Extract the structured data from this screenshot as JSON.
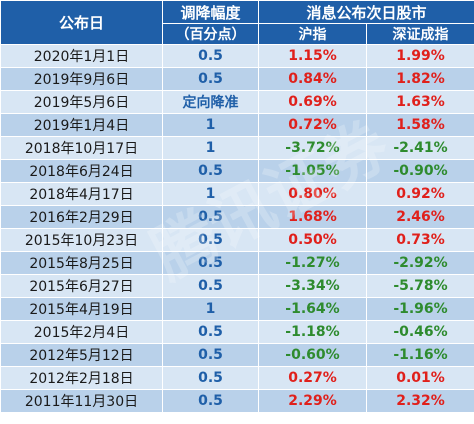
{
  "header": {
    "date_col": "公布日",
    "cut_col": "调降幅度",
    "cut_unit": "（百分点）",
    "market_group": "消息公布次日股市",
    "sh_col": "沪指",
    "sz_col": "深证成指"
  },
  "rows": [
    {
      "date": "2020年1月1日",
      "cut": "0.5",
      "sh": "1.15%",
      "sz": "1.99%"
    },
    {
      "date": "2019年9月6日",
      "cut": "0.5",
      "sh": "0.84%",
      "sz": "1.82%"
    },
    {
      "date": "2019年5月6日",
      "cut": "定向降准",
      "sh": "0.69%",
      "sz": "1.63%"
    },
    {
      "date": "2019年1月4日",
      "cut": "1",
      "sh": "0.72%",
      "sz": "1.58%"
    },
    {
      "date": "2018年10月17日",
      "cut": "1",
      "sh": "-3.72%",
      "sz": "-2.41%"
    },
    {
      "date": "2018年6月24日",
      "cut": "0.5",
      "sh": "-1.05%",
      "sz": "-0.90%"
    },
    {
      "date": "2018年4月17日",
      "cut": "1",
      "sh": "0.80%",
      "sz": "0.92%"
    },
    {
      "date": "2016年2月29日",
      "cut": "0.5",
      "sh": "1.68%",
      "sz": "2.46%"
    },
    {
      "date": "2015年10月23日",
      "cut": "0.5",
      "sh": "0.50%",
      "sz": "0.73%"
    },
    {
      "date": "2015年8月25日",
      "cut": "0.5",
      "sh": "-1.27%",
      "sz": "-2.92%"
    },
    {
      "date": "2015年6月27日",
      "cut": "0.5",
      "sh": "-3.34%",
      "sz": "-5.78%"
    },
    {
      "date": "2015年4月19日",
      "cut": "1",
      "sh": "-1.64%",
      "sz": "-1.96%"
    },
    {
      "date": "2015年2月4日",
      "cut": "0.5",
      "sh": "-1.18%",
      "sz": "-0.46%"
    },
    {
      "date": "2012年5月12日",
      "cut": "0.5",
      "sh": "-0.60%",
      "sz": "-1.16%"
    },
    {
      "date": "2012年2月18日",
      "cut": "0.5",
      "sh": "0.27%",
      "sz": "0.01%"
    },
    {
      "date": "2011年11月30日",
      "cut": "0.5",
      "sh": "2.29%",
      "sz": "2.32%"
    }
  ],
  "colors": {
    "header_bg": "#1f5fa8",
    "row_light": "#d8e6f4",
    "row_dark": "#b9d1ea",
    "positive": "#e0201b",
    "negative": "#2e8b2e",
    "cut_text": "#1f5fa8"
  }
}
